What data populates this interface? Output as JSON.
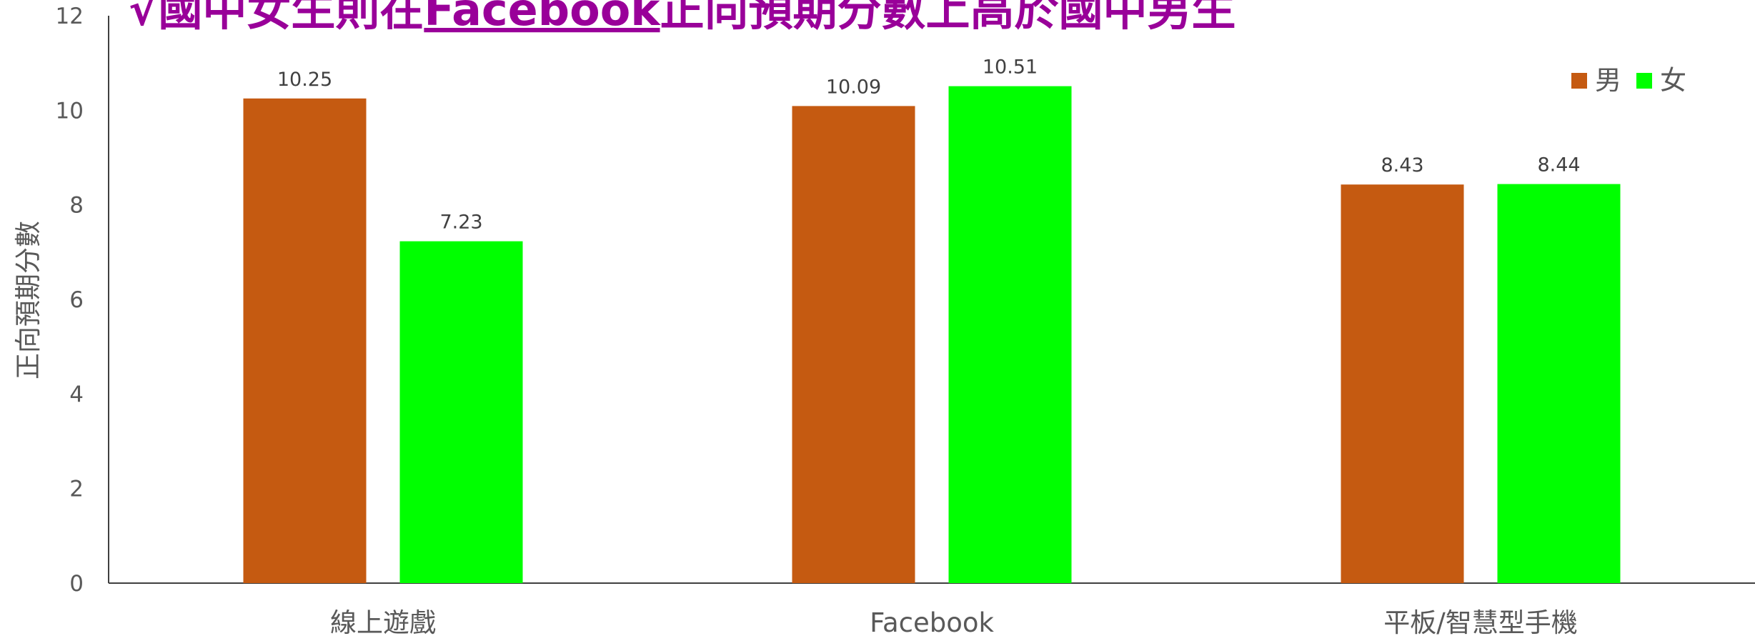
{
  "chart_data": {
    "type": "bar",
    "title_segments": [
      "√國中女生則在",
      "Facebook",
      "正向預期分數上高於國中男生"
    ],
    "y_label": "正向預期分數",
    "categories": [
      "線上遊戲",
      "Facebook",
      "平板/智慧型手機"
    ],
    "series": [
      {
        "name": "男",
        "color": "#c55a11",
        "values": [
          10.25,
          10.09,
          8.43
        ]
      },
      {
        "name": "女",
        "color": "#00ff00",
        "values": [
          7.23,
          10.51,
          8.44
        ]
      }
    ],
    "ylim": [
      0,
      12
    ],
    "yticks": [
      0,
      2,
      4,
      6,
      8,
      10,
      12
    ],
    "grid": false,
    "legend": "top-right"
  }
}
